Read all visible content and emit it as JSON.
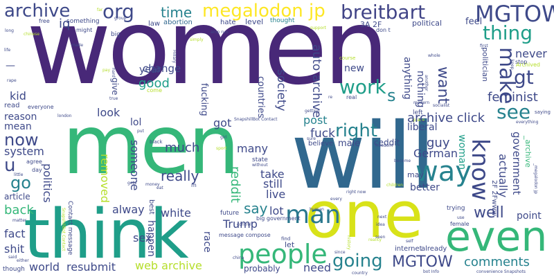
{
  "palette": {
    "purple": "#482878",
    "indigo": "#3e4989",
    "blue": "#31688e",
    "teal": "#26828e",
    "green": "#1f9e89",
    "mint": "#35b779",
    "lime": "#6ece58",
    "yellow": "#b5de2b",
    "bright": "#fde725"
  },
  "words": {
    "women": "women",
    "men": "men",
    "will": "will",
    "think": "think",
    "one": "one",
    "even": "even",
    "people": "people",
    "man": "man",
    "know": "know",
    "way": "way",
    "well": "well",
    "archive": "archive",
    "org": "org",
    "megalodon_jp": "megalodon jp",
    "breitbart": "breitbart",
    "mgtow_top": "MGTOW",
    "mgtow_bottom": "MGTOW",
    "time": "time",
    "iq": "iq",
    "thing": "thing",
    "gt": "gt",
    "make": "make",
    "want": "want",
    "s": "s",
    "work": "work",
    "feminist": "feminist",
    "see": "see",
    "right": "right",
    "post": "post",
    "archive_click": "archive click",
    "auto_archive": "auto archive",
    "society": "society",
    "countries": "countries",
    "new": "new",
    "year": "year",
    "change": "change",
    "good": "good",
    "look": "look",
    "lol": "lol",
    "got": "got",
    "fucking": "fucking",
    "mean": "mean",
    "reason": "reason",
    "kid": "kid",
    "now": "now",
    "system": "system",
    "u": "u",
    "go": "go",
    "much": "much",
    "someone": "someone",
    "removed": "removed",
    "really": "really",
    "politics": "politics",
    "reddit": "reddit",
    "take": "take",
    "still": "still",
    "live": "live",
    "say": "say",
    "lot": "lot",
    "many": "many",
    "fuck": "fuck",
    "ceddit": "ceddit",
    "german": "German",
    "guy": "guy",
    "liberal": "liberal",
    "woman": "woman",
    "government": "government",
    "actually": "actually",
    "better": "better",
    "point": "point",
    "trump": "Trump",
    "sex": "sex",
    "white": "white",
    "always": "alway",
    "happen": "happen",
    "back": "back",
    "fact": "fact",
    "shit": "shit",
    "article": "article",
    "world": "world",
    "resubmit": "resubmit",
    "web_archive": "web archive",
    "going": "going",
    "comments": "comments",
    "need": "need",
    "probably": "probably",
    "nothing": "nothing",
    "never": "never",
    "anything": "anything",
    "abortion": "abortion",
    "law": "law",
    "level": "level",
    "feel": "feel",
    "political": "political",
    "something": "something",
    "free": "free",
    "big": "big",
    "might": "might",
    "hate": "hate",
    "thought": "thought",
    "dont": "don t",
    "3a2f": "3A 2F",
    "u_archive": "_archive",
    "internet": "internet",
    "already": "already",
    "race": "race",
    "future": "future",
    "state": "state",
    "best": "best",
    "male": "male",
    "may": "may",
    "left": "left",
    "give": "give",
    "read": "read",
    "come": "come",
    "message_compose": "message compose",
    "let": "let",
    "trying": "trying",
    "female": "female",
    "sure": "sure",
    "believe": "believe",
    "saying": "saying",
    "big_government": "big government",
    "snapshillbot_contact": "SnapshillBot Contact",
    "convenience_snapshots": "convenience Snapshots",
    "bot_info": "bot Info",
    "right_now": "right now",
    "china": "china",
    "stop": "stop",
    "politician": "politician",
    "course": "course",
    "whole": "whole",
    "first": "first",
    "real": "real",
    "another": "another",
    "getting": "getting",
    "hillary": "Hillary",
    "amp_run": "amp run",
    "support": "support",
    "keep": "keep",
    "everything": "everything",
    "contact_message": "Contact message",
    "2f_2fwww": "2F 2Fwww",
    "megalodon_jp_small": "_megalodon jp",
    "become": "become",
    "idea": "idea",
    "human": "human",
    "every": "every",
    "children": "children",
    "freedom": "freedom",
    "country": "country",
    "since": "since",
    "agree": "agree",
    "day": "day",
    "matter": "matter",
    "though": "though",
    "little": "little",
    "either": "either",
    "said": "said",
    "life": "life",
    "rape": "rape",
    "long": "long",
    "chinese": "chinese",
    "made": "made",
    "pay": "pay",
    "hard": "hard",
    "true": "true",
    "london": "london",
    "everyone": "everyone",
    "put": "put",
    "black": "black",
    "sport": "sport",
    "girl": "girl",
    "gets": "gets",
    "money": "money",
    "eat": "eat",
    "m": "m",
    "control": "control",
    "without": "without",
    "find": "find",
    "self": "self",
    "seen": "seen",
    "next": "next",
    "use": "use",
    "reality": "reality",
    "modern": "modern",
    "place": "place",
    "socialist": "socialist",
    "simply": "simply",
    "far": "far",
    "group": "group",
    "re": "re",
    "archived": "Archived",
    "history": "history"
  }
}
